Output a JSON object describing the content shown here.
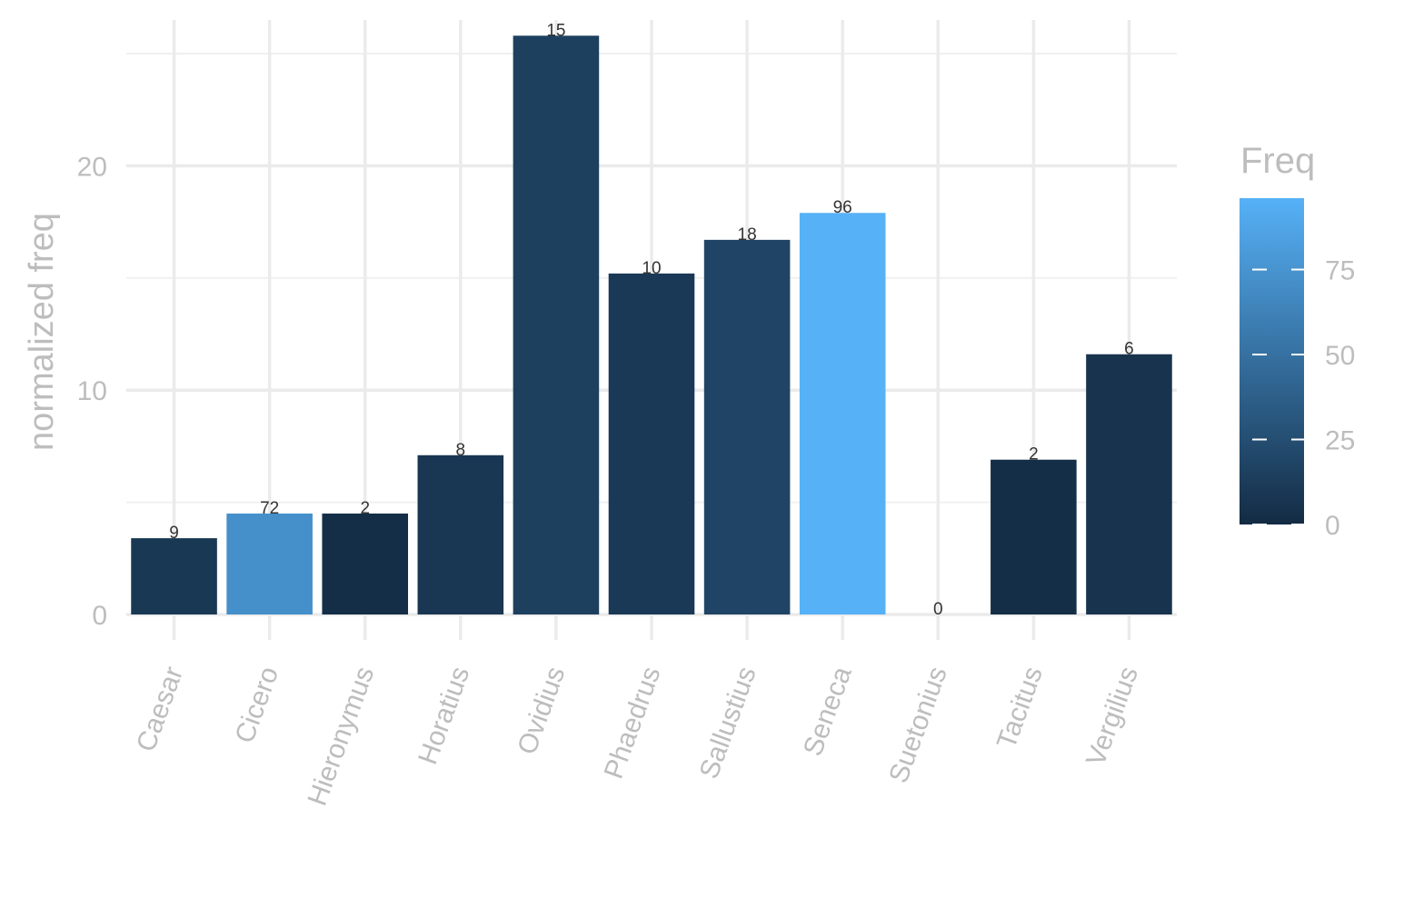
{
  "chart_data": {
    "type": "bar",
    "ylabel": "normalized freq",
    "xlabel": "",
    "ylim": [
      0,
      26.5
    ],
    "yticks": [
      0,
      10,
      20
    ],
    "categories": [
      "Caesar",
      "Cicero",
      "Hieronymus",
      "Horatius",
      "Ovidius",
      "Phaedrus",
      "Sallustius",
      "Seneca",
      "Suetonius",
      "Tacitus",
      "Vergilius"
    ],
    "values": [
      3.4,
      4.5,
      4.5,
      7.1,
      25.8,
      15.2,
      16.7,
      17.9,
      0,
      6.9,
      11.6
    ],
    "freq": [
      9,
      72,
      2,
      8,
      15,
      10,
      18,
      96,
      0,
      2,
      6
    ],
    "grid": true,
    "legend": {
      "title": "Freq",
      "placement": "right",
      "range": [
        0,
        96
      ],
      "ticks": [
        0,
        25,
        50,
        75
      ],
      "color_low": "#132b43",
      "color_high": "#56b1f7"
    }
  }
}
